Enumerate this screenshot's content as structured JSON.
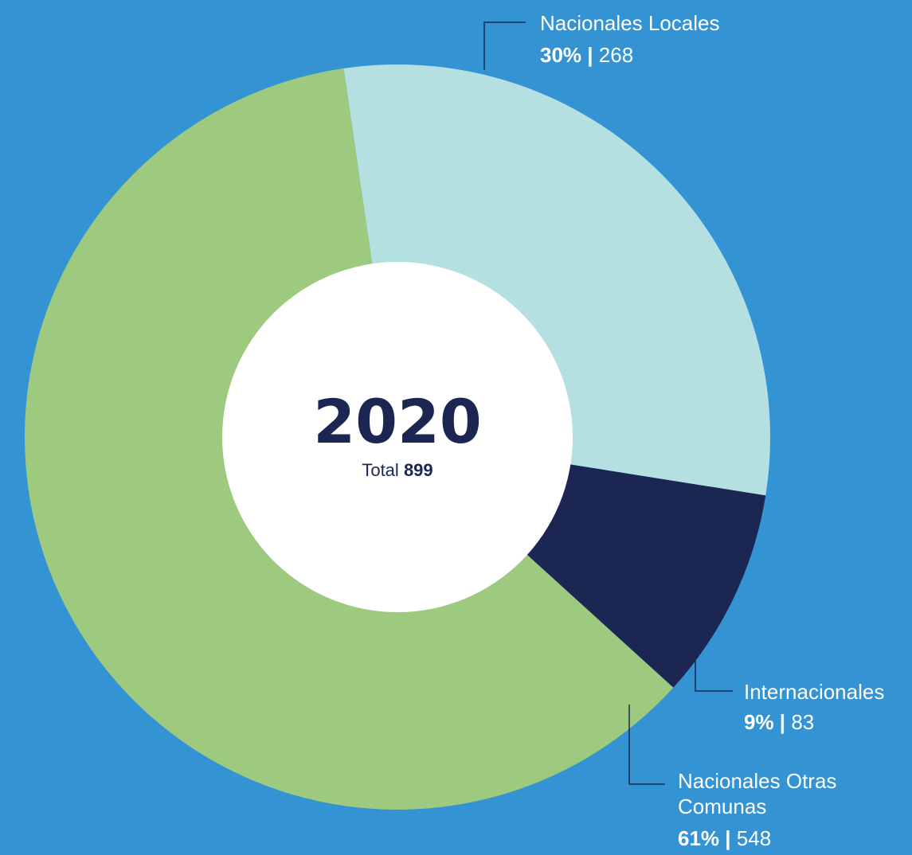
{
  "chart_data": {
    "type": "pie",
    "variant": "donut",
    "center": {
      "year": "2020",
      "total_label": "Total",
      "total_value": "899"
    },
    "total": 899,
    "slices": [
      {
        "label": "Nacionales Locales",
        "label_lines": [
          "Nacionales Locales"
        ],
        "percent_text": "30%",
        "value": 268,
        "color": "#b4e0e1"
      },
      {
        "label": "Internacionales",
        "label_lines": [
          "Internacionales"
        ],
        "percent_text": "9%",
        "value": 83,
        "color": "#1b2653"
      },
      {
        "label": "Nacionales Otras Comunas",
        "label_lines": [
          "Nacionales Otras",
          "Comunas"
        ],
        "percent_text": "61%",
        "value": 548,
        "color": "#9dca7f"
      }
    ],
    "colors": {
      "background": "#3494d3",
      "center_fill": "#ffffff",
      "center_text": "#1b2653",
      "callout_text": "#ffffff",
      "leader_line": "#1b2653"
    }
  }
}
